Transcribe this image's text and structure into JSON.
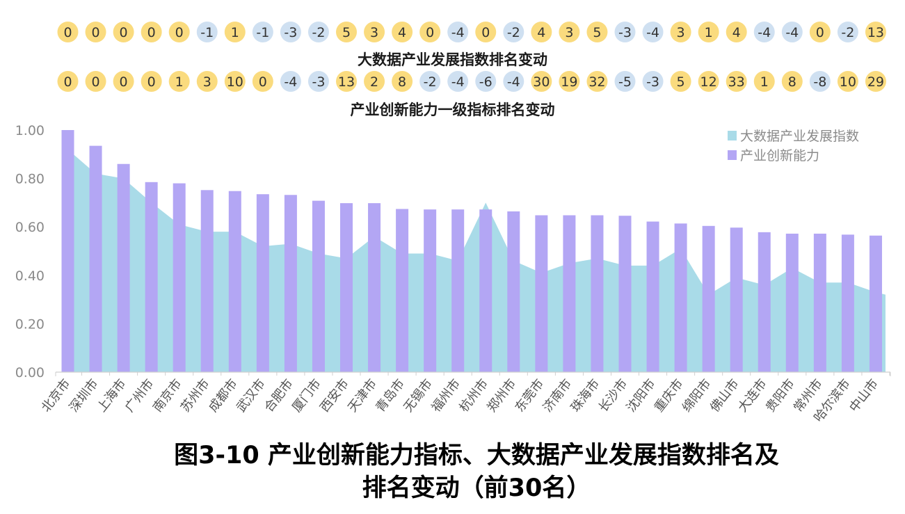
{
  "rank_change_rows": [
    {
      "title": "大数据产业发展指数排名变动",
      "values": [
        "0",
        "0",
        "0",
        "0",
        "0",
        "-1",
        "1",
        "-1",
        "-3",
        "-2",
        "5",
        "3",
        "4",
        "0",
        "-4",
        "0",
        "-2",
        "4",
        "3",
        "5",
        "-3",
        "-4",
        "3",
        "1",
        "4",
        "-4",
        "-4",
        "0",
        "-2",
        "13"
      ]
    },
    {
      "title": "产业创新能力一级指标排名变动",
      "values": [
        "0",
        "0",
        "0",
        "0",
        "1",
        "3",
        "10",
        "0",
        "-4",
        "-3",
        "13",
        "2",
        "8",
        "-2",
        "-4",
        "-6",
        "-4",
        "30",
        "19",
        "32",
        "-5",
        "-3",
        "5",
        "12",
        "33",
        "1",
        "8",
        "-8",
        "10",
        "29"
      ]
    }
  ],
  "colors": {
    "positive_badge": "#fadb7e",
    "positive_badge_strong": "#f4c555",
    "negative_badge": "#cfe0f1",
    "bar": "#b3a6f4",
    "area": "#a9dbe8",
    "axis_text": "#8a8a8a",
    "axis_line": "#cfcfcf"
  },
  "chart_data": {
    "type": "bar",
    "categories": [
      "北京市",
      "深圳市",
      "上海市",
      "广州市",
      "南京市",
      "苏州市",
      "成都市",
      "武汉市",
      "合肥市",
      "厦门市",
      "西安市",
      "天津市",
      "青岛市",
      "无锡市",
      "福州市",
      "杭州市",
      "郑州市",
      "东莞市",
      "济南市",
      "珠海市",
      "长沙市",
      "沈阳市",
      "重庆市",
      "绵阳市",
      "佛山市",
      "大连市",
      "贵阳市",
      "常州市",
      "哈尔滨市",
      "中山市"
    ],
    "series": [
      {
        "name": "大数据产业发展指数",
        "render": "area",
        "values": [
          0.92,
          0.82,
          0.8,
          0.7,
          0.61,
          0.58,
          0.58,
          0.52,
          0.53,
          0.49,
          0.47,
          0.56,
          0.49,
          0.49,
          0.46,
          0.7,
          0.46,
          0.41,
          0.45,
          0.47,
          0.44,
          0.44,
          0.51,
          0.32,
          0.39,
          0.36,
          0.43,
          0.37,
          0.37,
          0.33
        ]
      },
      {
        "name": "产业创新能力",
        "render": "bar",
        "values": [
          1.0,
          0.935,
          0.86,
          0.785,
          0.78,
          0.752,
          0.748,
          0.735,
          0.732,
          0.708,
          0.698,
          0.698,
          0.674,
          0.672,
          0.672,
          0.672,
          0.664,
          0.648,
          0.648,
          0.648,
          0.646,
          0.622,
          0.614,
          0.604,
          0.597,
          0.578,
          0.572,
          0.572,
          0.568,
          0.564
        ]
      }
    ],
    "yticks": [
      "0.00",
      "0.20",
      "0.40",
      "0.60",
      "0.80",
      "1.00"
    ],
    "ylim": [
      0,
      1
    ],
    "grid": false,
    "legend_position": "top-right"
  },
  "caption": {
    "line1": "图3-10 产业创新能力指标、大数据产业发展指数排名及",
    "line2": "排名变动（前30名）"
  }
}
